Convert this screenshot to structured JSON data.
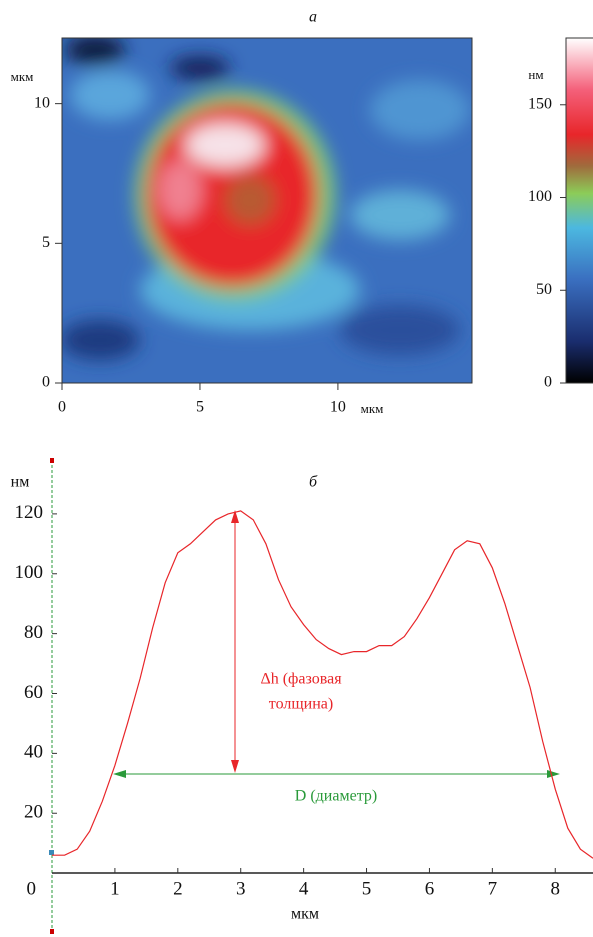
{
  "chart_data": [
    {
      "type": "heatmap",
      "title": "а",
      "x_label": "мкм",
      "y_label": "мкм",
      "xlim": [
        0,
        14.86
      ],
      "ylim": [
        0,
        12.35
      ],
      "xticks": [
        0,
        5,
        10
      ],
      "yticks": [
        0,
        5,
        10
      ],
      "colorbar": {
        "label": "нм",
        "lim": [
          0,
          186
        ],
        "ticks": [
          0,
          50,
          100,
          150
        ]
      }
    },
    {
      "type": "line",
      "title": "б",
      "x_label": "мкм",
      "y_label": "нм",
      "x": [
        0,
        0.2,
        0.4,
        0.6,
        0.8,
        1.0,
        1.2,
        1.4,
        1.6,
        1.8,
        2.0,
        2.2,
        2.4,
        2.6,
        2.8,
        3.0,
        3.2,
        3.4,
        3.6,
        3.8,
        4.0,
        4.2,
        4.4,
        4.6,
        4.8,
        5.0,
        5.2,
        5.4,
        5.6,
        5.8,
        6.0,
        6.2,
        6.4,
        6.6,
        6.8,
        7.0,
        7.2,
        7.4,
        7.6,
        7.8,
        8.0,
        8.2,
        8.4,
        8.6
      ],
      "series": [
        {
          "color": "#e8262a",
          "values": [
            6,
            6,
            8,
            14,
            24,
            36,
            50,
            65,
            82,
            97,
            107,
            110,
            114,
            118,
            120,
            121,
            118,
            110,
            98,
            89,
            83,
            78,
            75,
            73,
            74,
            74,
            76,
            76,
            79,
            85,
            92,
            100,
            108,
            111,
            110,
            102,
            90,
            76,
            62,
            44,
            28,
            15,
            8,
            5
          ]
        }
      ],
      "xlim": [
        0,
        8.6
      ],
      "ylim": [
        -19,
        138
      ],
      "xticks": [
        1,
        2,
        3,
        4,
        5,
        6,
        7,
        8
      ],
      "yticks": [
        0,
        20,
        40,
        60,
        80,
        100,
        120
      ],
      "annotations": [
        "Δh (фазовая",
        "толщина)",
        "D (диаметр)"
      ]
    }
  ]
}
